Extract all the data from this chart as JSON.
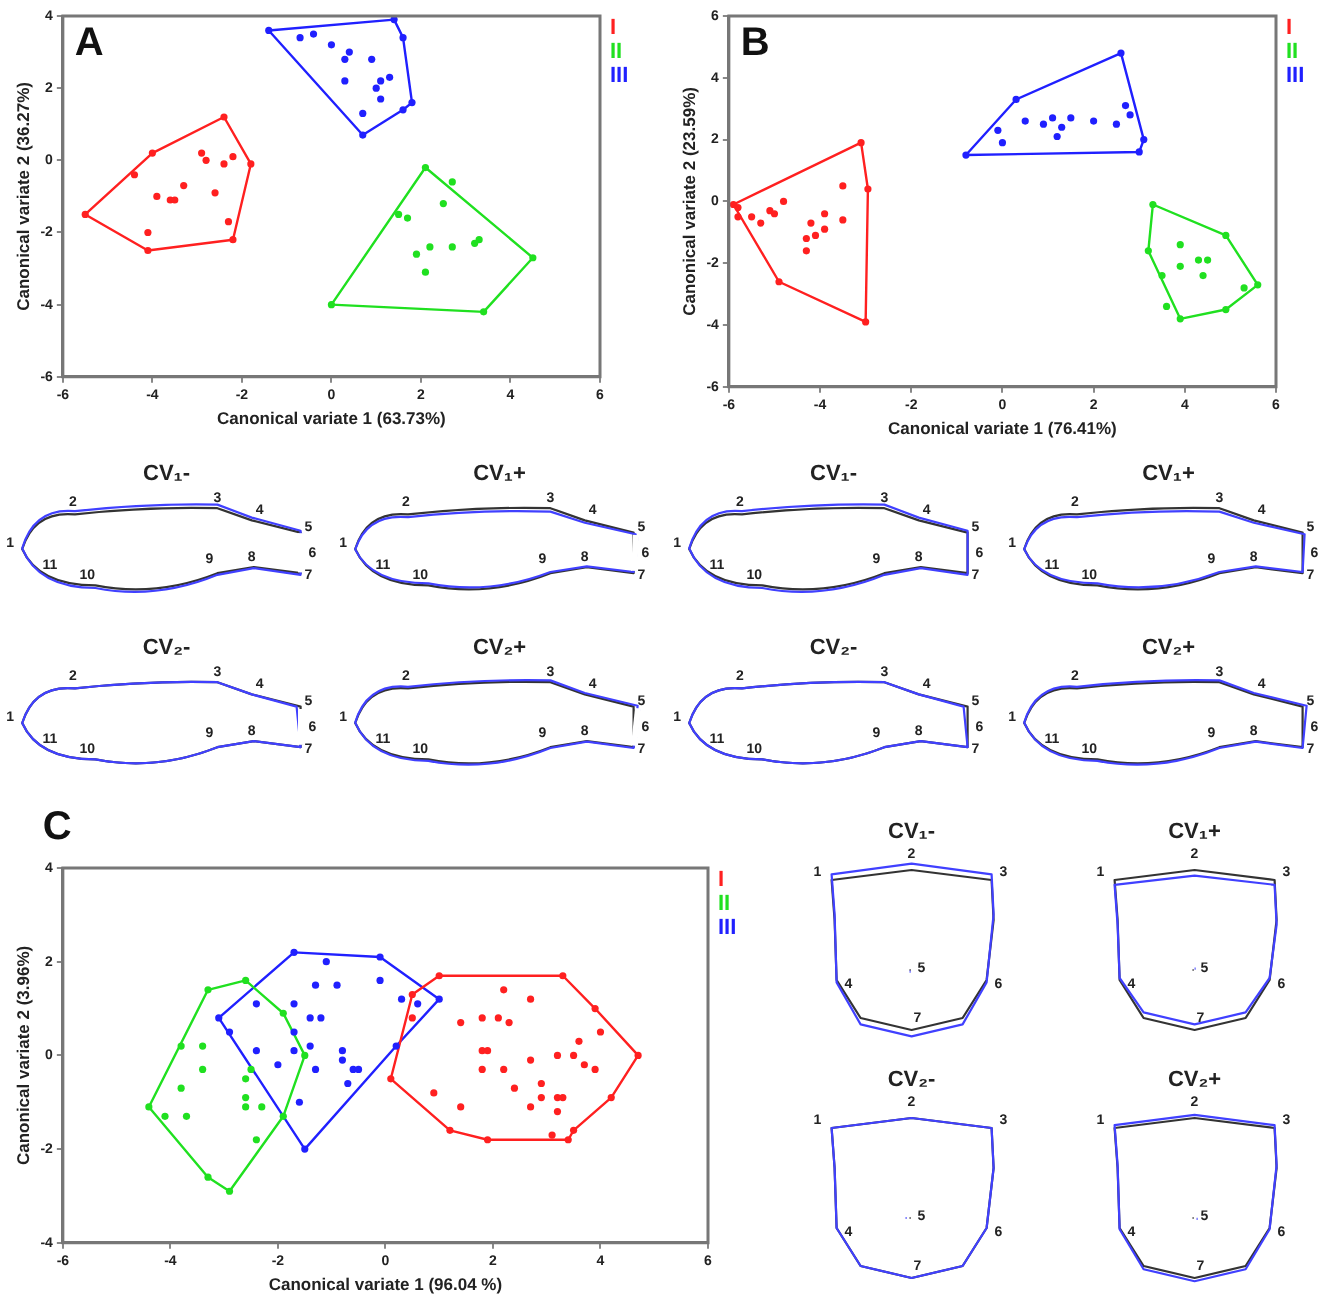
{
  "chart_data": [
    {
      "type": "scatter",
      "title": "A",
      "xlabel": "Canonical variate 1 (63.73%)",
      "ylabel": "Canonical variate 2 (36.27%)",
      "xlim": [
        -6,
        6
      ],
      "ylim": [
        -6,
        4
      ],
      "xticks": [
        -6,
        -4,
        -2,
        0,
        2,
        4,
        6
      ],
      "yticks": [
        -6,
        -4,
        -2,
        0,
        2,
        4
      ],
      "grid": false,
      "legend": "top right",
      "series": [
        {
          "name": "I",
          "color": "#ff2020",
          "marker": "circle",
          "x": [
            -5.5,
            -4.1,
            -2.2,
            -1.8,
            -2.4,
            -4.0,
            -4.4,
            -2.9,
            -2.8,
            -2.2,
            -2.4,
            -3.3,
            -3.9,
            -3.6,
            -3.5,
            -2.6,
            -2.3,
            -4.1
          ],
          "values": [
            -1.5,
            -2.5,
            -2.2,
            -0.1,
            1.2,
            0.2,
            -0.4,
            0.2,
            0.0,
            0.1,
            -0.1,
            -0.7,
            -1.0,
            -1.1,
            -1.1,
            -0.9,
            -1.7,
            -2.0
          ]
        },
        {
          "name": "II",
          "color": "#20e020",
          "marker": "circle",
          "x": [
            2.1,
            4.5,
            3.4,
            0.0,
            2.7,
            2.5,
            1.5,
            1.7,
            3.3,
            3.2,
            2.7,
            2.2,
            1.9,
            2.1
          ],
          "values": [
            -0.2,
            -2.7,
            -4.2,
            -4.0,
            -0.6,
            -1.2,
            -1.5,
            -1.6,
            -2.2,
            -2.3,
            -2.4,
            -2.4,
            -2.6,
            -3.1
          ]
        },
        {
          "name": "III",
          "color": "#2020ff",
          "marker": "circle",
          "x": [
            -1.4,
            1.4,
            1.6,
            1.8,
            1.6,
            0.7,
            -0.7,
            -0.4,
            0.0,
            0.4,
            0.3,
            0.9,
            1.3,
            1.1,
            0.3,
            1.0,
            1.1,
            0.7
          ],
          "values": [
            3.6,
            3.9,
            3.4,
            1.6,
            1.4,
            0.7,
            3.4,
            3.5,
            3.2,
            3.0,
            2.8,
            2.8,
            2.3,
            2.2,
            2.2,
            2.0,
            1.7,
            1.3
          ]
        },
        {
          "type": "line",
          "color": "#ff2020",
          "marker": "none",
          "x": [
            -5.5,
            -4.0,
            -2.4,
            -1.8
          ],
          "values": [
            -1.5,
            0.2,
            1.2,
            -0.1
          ]
        },
        {
          "type": "line",
          "color": "#ff2020",
          "marker": "none",
          "x": [
            -5.5,
            -4.1,
            -2.2,
            -1.8
          ],
          "values": [
            -1.5,
            -2.5,
            -2.2,
            -0.1
          ]
        },
        {
          "type": "line",
          "color": "#20e020",
          "marker": "none",
          "x": [
            0.0,
            2.1,
            4.5
          ],
          "values": [
            -4.0,
            -0.2,
            -2.7
          ]
        },
        {
          "type": "line",
          "color": "#20e020",
          "marker": "none",
          "x": [
            0.0,
            3.4,
            4.5
          ],
          "values": [
            -4.0,
            -4.2,
            -2.7
          ]
        },
        {
          "type": "line",
          "color": "#2020ff",
          "marker": "none",
          "x": [
            -1.4,
            1.4,
            1.6,
            1.8
          ],
          "values": [
            3.6,
            3.9,
            3.4,
            1.6
          ]
        },
        {
          "type": "line",
          "color": "#2020ff",
          "marker": "none",
          "x": [
            -1.4,
            0.7,
            1.6,
            1.8
          ],
          "values": [
            3.6,
            0.7,
            1.4,
            1.6
          ]
        }
      ]
    },
    {
      "type": "scatter",
      "title": "B",
      "xlabel": "Canonical variate 1 (76.41%)",
      "ylabel": "Canonical variate 2 (23.59%)",
      "xlim": [
        -6,
        6
      ],
      "ylim": [
        -6,
        6
      ],
      "xticks": [
        -6,
        -4,
        -2,
        0,
        2,
        4,
        6
      ],
      "yticks": [
        -6,
        -4,
        -2,
        0,
        2,
        4,
        6
      ],
      "grid": false,
      "legend": "top right",
      "series": [
        {
          "name": "I",
          "color": "#ff2020",
          "marker": "circle",
          "x": [
            -5.9,
            -3.1,
            -2.95,
            -3.0,
            -4.9,
            -5.8,
            -5.8,
            -5.5,
            -5.3,
            -5.1,
            -5.0,
            -4.8,
            -3.5,
            -3.9,
            -3.5,
            -4.2,
            -3.9,
            -4.1,
            -4.3,
            -4.3
          ],
          "values": [
            -0.1,
            1.9,
            0.4,
            -3.9,
            -2.6,
            -0.2,
            -0.5,
            -0.5,
            -0.7,
            -0.3,
            -0.4,
            0.0,
            0.5,
            -0.4,
            -0.6,
            -0.7,
            -0.9,
            -1.1,
            -1.2,
            -1.6
          ]
        },
        {
          "name": "II",
          "color": "#20e020",
          "marker": "circle",
          "x": [
            3.3,
            4.9,
            5.6,
            4.9,
            3.9,
            3.2,
            3.9,
            3.6,
            3.5,
            3.9,
            4.3,
            4.5,
            4.4,
            5.3
          ],
          "values": [
            -0.1,
            -1.1,
            -2.7,
            -3.5,
            -3.8,
            -1.6,
            -1.4,
            -3.4,
            -2.4,
            -2.1,
            -1.9,
            -1.9,
            -2.4,
            -2.8
          ]
        },
        {
          "name": "III",
          "color": "#2020ff",
          "marker": "circle",
          "x": [
            -0.8,
            0.3,
            2.6,
            3.1,
            3.0,
            -0.1,
            0.0,
            0.5,
            0.9,
            1.1,
            1.3,
            1.5,
            1.2,
            2.0,
            2.5,
            2.7,
            2.8
          ],
          "values": [
            1.5,
            3.3,
            4.8,
            2.0,
            1.6,
            2.3,
            1.9,
            2.6,
            2.5,
            2.7,
            2.4,
            2.7,
            2.1,
            2.6,
            2.5,
            3.1,
            2.8
          ]
        },
        {
          "type": "line",
          "color": "#ff2020",
          "marker": "none",
          "x": [
            -5.9,
            -3.1,
            -2.95
          ],
          "values": [
            -0.1,
            1.9,
            0.4
          ]
        },
        {
          "type": "line",
          "color": "#ff2020",
          "marker": "none",
          "x": [
            -5.9,
            -4.9,
            -3.0,
            -2.95
          ],
          "values": [
            -0.1,
            -2.6,
            -3.9,
            0.4
          ]
        },
        {
          "type": "line",
          "color": "#20e020",
          "marker": "none",
          "x": [
            3.2,
            3.3,
            4.9,
            5.6
          ],
          "values": [
            -1.6,
            -0.1,
            -1.1,
            -2.7
          ]
        },
        {
          "type": "line",
          "color": "#20e020",
          "marker": "none",
          "x": [
            3.2,
            3.9,
            4.9,
            5.6
          ],
          "values": [
            -1.6,
            -3.8,
            -3.5,
            -2.7
          ]
        },
        {
          "type": "line",
          "color": "#2020ff",
          "marker": "none",
          "x": [
            -0.8,
            0.3,
            2.6,
            3.1
          ],
          "values": [
            1.5,
            3.3,
            4.8,
            2.0
          ]
        },
        {
          "type": "line",
          "color": "#2020ff",
          "marker": "none",
          "x": [
            -0.8,
            3.0,
            3.1
          ],
          "values": [
            1.5,
            1.6,
            2.0
          ]
        }
      ]
    },
    {
      "type": "other",
      "annotations": [
        "CV₁-",
        "1",
        "2",
        "3",
        "4",
        "5",
        "6",
        "7",
        "8",
        "9",
        "10",
        "11",
        "CV₁+",
        "1",
        "2",
        "3",
        "4",
        "5",
        "6",
        "7",
        "8",
        "9",
        "10",
        "11",
        "CV₂-",
        "1",
        "2",
        "3",
        "4",
        "5",
        "6",
        "7",
        "8",
        "9",
        "10",
        "11",
        "CV₂+",
        "1",
        "2",
        "3",
        "4",
        "5",
        "6",
        "7",
        "8",
        "9",
        "10",
        "11"
      ]
    },
    {
      "type": "other",
      "annotations": [
        "CV₁-",
        "1",
        "2",
        "3",
        "4",
        "5",
        "6",
        "7",
        "8",
        "9",
        "10",
        "11",
        "CV₁+",
        "1",
        "2",
        "3",
        "4",
        "5",
        "6",
        "7",
        "8",
        "9",
        "10",
        "11",
        "CV₂-",
        "1",
        "2",
        "3",
        "4",
        "5",
        "6",
        "7",
        "8",
        "9",
        "10",
        "11",
        "CV₂+",
        "1",
        "2",
        "3",
        "4",
        "5",
        "6",
        "7",
        "8",
        "9",
        "10",
        "11"
      ]
    },
    {
      "type": "scatter",
      "title": "C",
      "xlabel": "Canonical variate 1 (96.04 %)",
      "ylabel": "Canonical variate 2 (3.96%)",
      "xlim": [
        -6,
        6
      ],
      "ylim": [
        -4,
        4
      ],
      "xticks": [
        -6,
        -4,
        -2,
        0,
        2,
        4,
        6
      ],
      "yticks": [
        -4,
        -2,
        0,
        2,
        4
      ],
      "grid": false,
      "legend": "top right",
      "series": [
        {
          "name": "I",
          "color": "#ff2020",
          "marker": "circle",
          "x": [
            0.1,
            0.5,
            1.0,
            3.3,
            3.9,
            4.7,
            4.2,
            3.5,
            3.4,
            1.9,
            1.2,
            0.5,
            1.4,
            1.8,
            2.1,
            2.3,
            2.2,
            2.7,
            4.0,
            3.6,
            1.8,
            1.9,
            2.7,
            3.2,
            3.5,
            3.7,
            3.9,
            1.8,
            2.2,
            2.9,
            2.4,
            2.9,
            2.7,
            3.2,
            3.3,
            0.9,
            1.4,
            3.2,
            3.1
          ],
          "values": [
            -0.5,
            1.3,
            1.7,
            1.7,
            1.0,
            0.0,
            -0.9,
            -1.6,
            -1.8,
            -1.8,
            -1.6,
            0.8,
            0.7,
            0.8,
            0.8,
            0.7,
            1.4,
            1.2,
            0.5,
            0.3,
            0.1,
            0.1,
            -0.1,
            0.0,
            0.0,
            -0.2,
            -0.3,
            -0.3,
            -0.3,
            -0.6,
            -0.7,
            -0.9,
            -1.1,
            -0.9,
            -0.9,
            -0.8,
            -1.1,
            -1.2,
            -1.7
          ]
        },
        {
          "name": "II",
          "color": "#20e020",
          "marker": "circle",
          "x": [
            -4.4,
            -3.3,
            -2.6,
            -1.9,
            -1.5,
            -1.9,
            -2.9,
            -3.3,
            -3.8,
            -3.4,
            -3.4,
            -3.8,
            -3.7,
            -4.1,
            -2.6,
            -2.5,
            -2.6,
            -2.6,
            -2.3,
            -2.4
          ],
          "values": [
            -1.1,
            1.4,
            1.6,
            0.9,
            0.0,
            -1.3,
            -2.9,
            -2.6,
            0.2,
            0.2,
            -0.3,
            -0.7,
            -1.3,
            -1.3,
            -0.5,
            -0.3,
            -0.9,
            -1.1,
            -1.1,
            -1.8
          ]
        },
        {
          "name": "III",
          "color": "#2020ff",
          "marker": "circle",
          "x": [
            -3.1,
            -1.7,
            -0.1,
            1.0,
            0.2,
            -1.5,
            -2.9,
            -2.4,
            -1.7,
            -1.1,
            -1.3,
            -0.9,
            -1.4,
            -1.2,
            -0.1,
            0.3,
            0.6,
            -1.7,
            -2.4,
            -1.7,
            -1.4,
            -2.0,
            -1.3,
            -0.8,
            -0.8,
            -0.6,
            -0.5,
            -0.7,
            -1.6
          ],
          "values": [
            0.8,
            2.2,
            2.1,
            1.2,
            0.2,
            -2.0,
            0.5,
            1.1,
            1.1,
            2.0,
            1.5,
            1.5,
            0.8,
            0.8,
            1.6,
            1.2,
            1.1,
            0.5,
            0.1,
            0.1,
            0.2,
            -0.2,
            -0.3,
            0.1,
            -0.1,
            -0.3,
            -0.3,
            -0.6,
            -1.0
          ]
        },
        {
          "type": "line",
          "color": "#ff2020",
          "marker": "none",
          "x": [
            0.1,
            0.5,
            1.0,
            3.3,
            3.9,
            4.7
          ],
          "values": [
            -0.5,
            1.3,
            1.7,
            1.7,
            1.0,
            0.0
          ]
        },
        {
          "type": "line",
          "color": "#ff2020",
          "marker": "none",
          "x": [
            0.1,
            1.2,
            1.9,
            3.4,
            3.5,
            4.2,
            4.7
          ],
          "values": [
            -0.5,
            -1.6,
            -1.8,
            -1.8,
            -1.6,
            -0.9,
            0.0
          ]
        },
        {
          "type": "line",
          "color": "#20e020",
          "marker": "none",
          "x": [
            -4.4,
            -3.3,
            -2.6,
            -1.9,
            -1.5
          ],
          "values": [
            -1.1,
            1.4,
            1.6,
            0.9,
            0.0
          ]
        },
        {
          "type": "line",
          "color": "#20e020",
          "marker": "none",
          "x": [
            -4.4,
            -3.3,
            -2.9,
            -1.9,
            -1.5
          ],
          "values": [
            -1.1,
            -2.6,
            -2.9,
            -1.3,
            0.0
          ]
        },
        {
          "type": "line",
          "color": "#2020ff",
          "marker": "none",
          "x": [
            -3.1,
            -1.7,
            -0.1,
            1.0
          ],
          "values": [
            0.8,
            2.2,
            2.1,
            1.2
          ]
        },
        {
          "type": "line",
          "color": "#2020ff",
          "marker": "none",
          "x": [
            -3.1,
            -1.5,
            0.2,
            1.0
          ],
          "values": [
            0.8,
            -2.0,
            0.2,
            1.2
          ]
        }
      ]
    },
    {
      "type": "other",
      "annotations": [
        "CV₁-",
        "1",
        "2",
        "3",
        "4",
        "5",
        "6",
        "7",
        "CV₁+",
        "1",
        "2",
        "3",
        "4",
        "5",
        "6",
        "7",
        "CV₂-",
        "1",
        "2",
        "3",
        "4",
        "5",
        "6",
        "7",
        "CV₂+",
        "1",
        "2",
        "3",
        "4",
        "5",
        "6",
        "7"
      ]
    }
  ]
}
